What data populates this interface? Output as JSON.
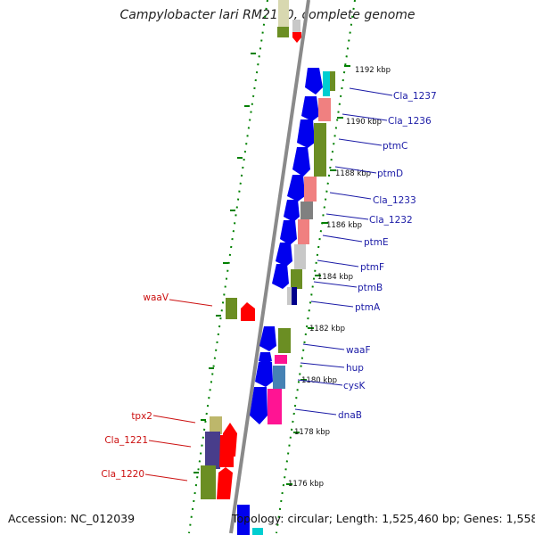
{
  "title": "Campylobacter lari RM2100, complete genome",
  "accession": "Accession: NC_012039",
  "topology": "Topology: circular; Length: 1,525,460 bp; Genes: 1,558",
  "colors": {
    "forward_arrow": "#ff0000",
    "reverse_arrow": "#0000ee",
    "cog_olive": "#6b8e23",
    "cog_pink": "#f08080",
    "cog_magenta": "#ff1493",
    "cog_gray": "#808080",
    "cog_silver": "#c8c8c8",
    "cog_steel": "#4682b4",
    "cog_cyan": "#00ced1",
    "cog_slate": "#483d8b",
    "cog_khaki": "#bdb76b",
    "tick_green": "#008000"
  },
  "kbp_ticks": [
    "1192 kbp",
    "1190 kbp",
    "1188 kbp",
    "1186 kbp",
    "1184 kbp",
    "1182 kbp",
    "1180 kbp",
    "1178 kbp",
    "1176 kbp"
  ],
  "right_labels": [
    "Cla_1237",
    "Cla_1236",
    "ptmC",
    "ptmD",
    "Cla_1233",
    "Cla_1232",
    "ptmE",
    "ptmF",
    "ptmB",
    "ptmA",
    "waaF",
    "hup",
    "cysK",
    "dnaB"
  ],
  "left_labels": [
    "waaV",
    "tpx2",
    "Cla_1221",
    "Cla_1220"
  ]
}
